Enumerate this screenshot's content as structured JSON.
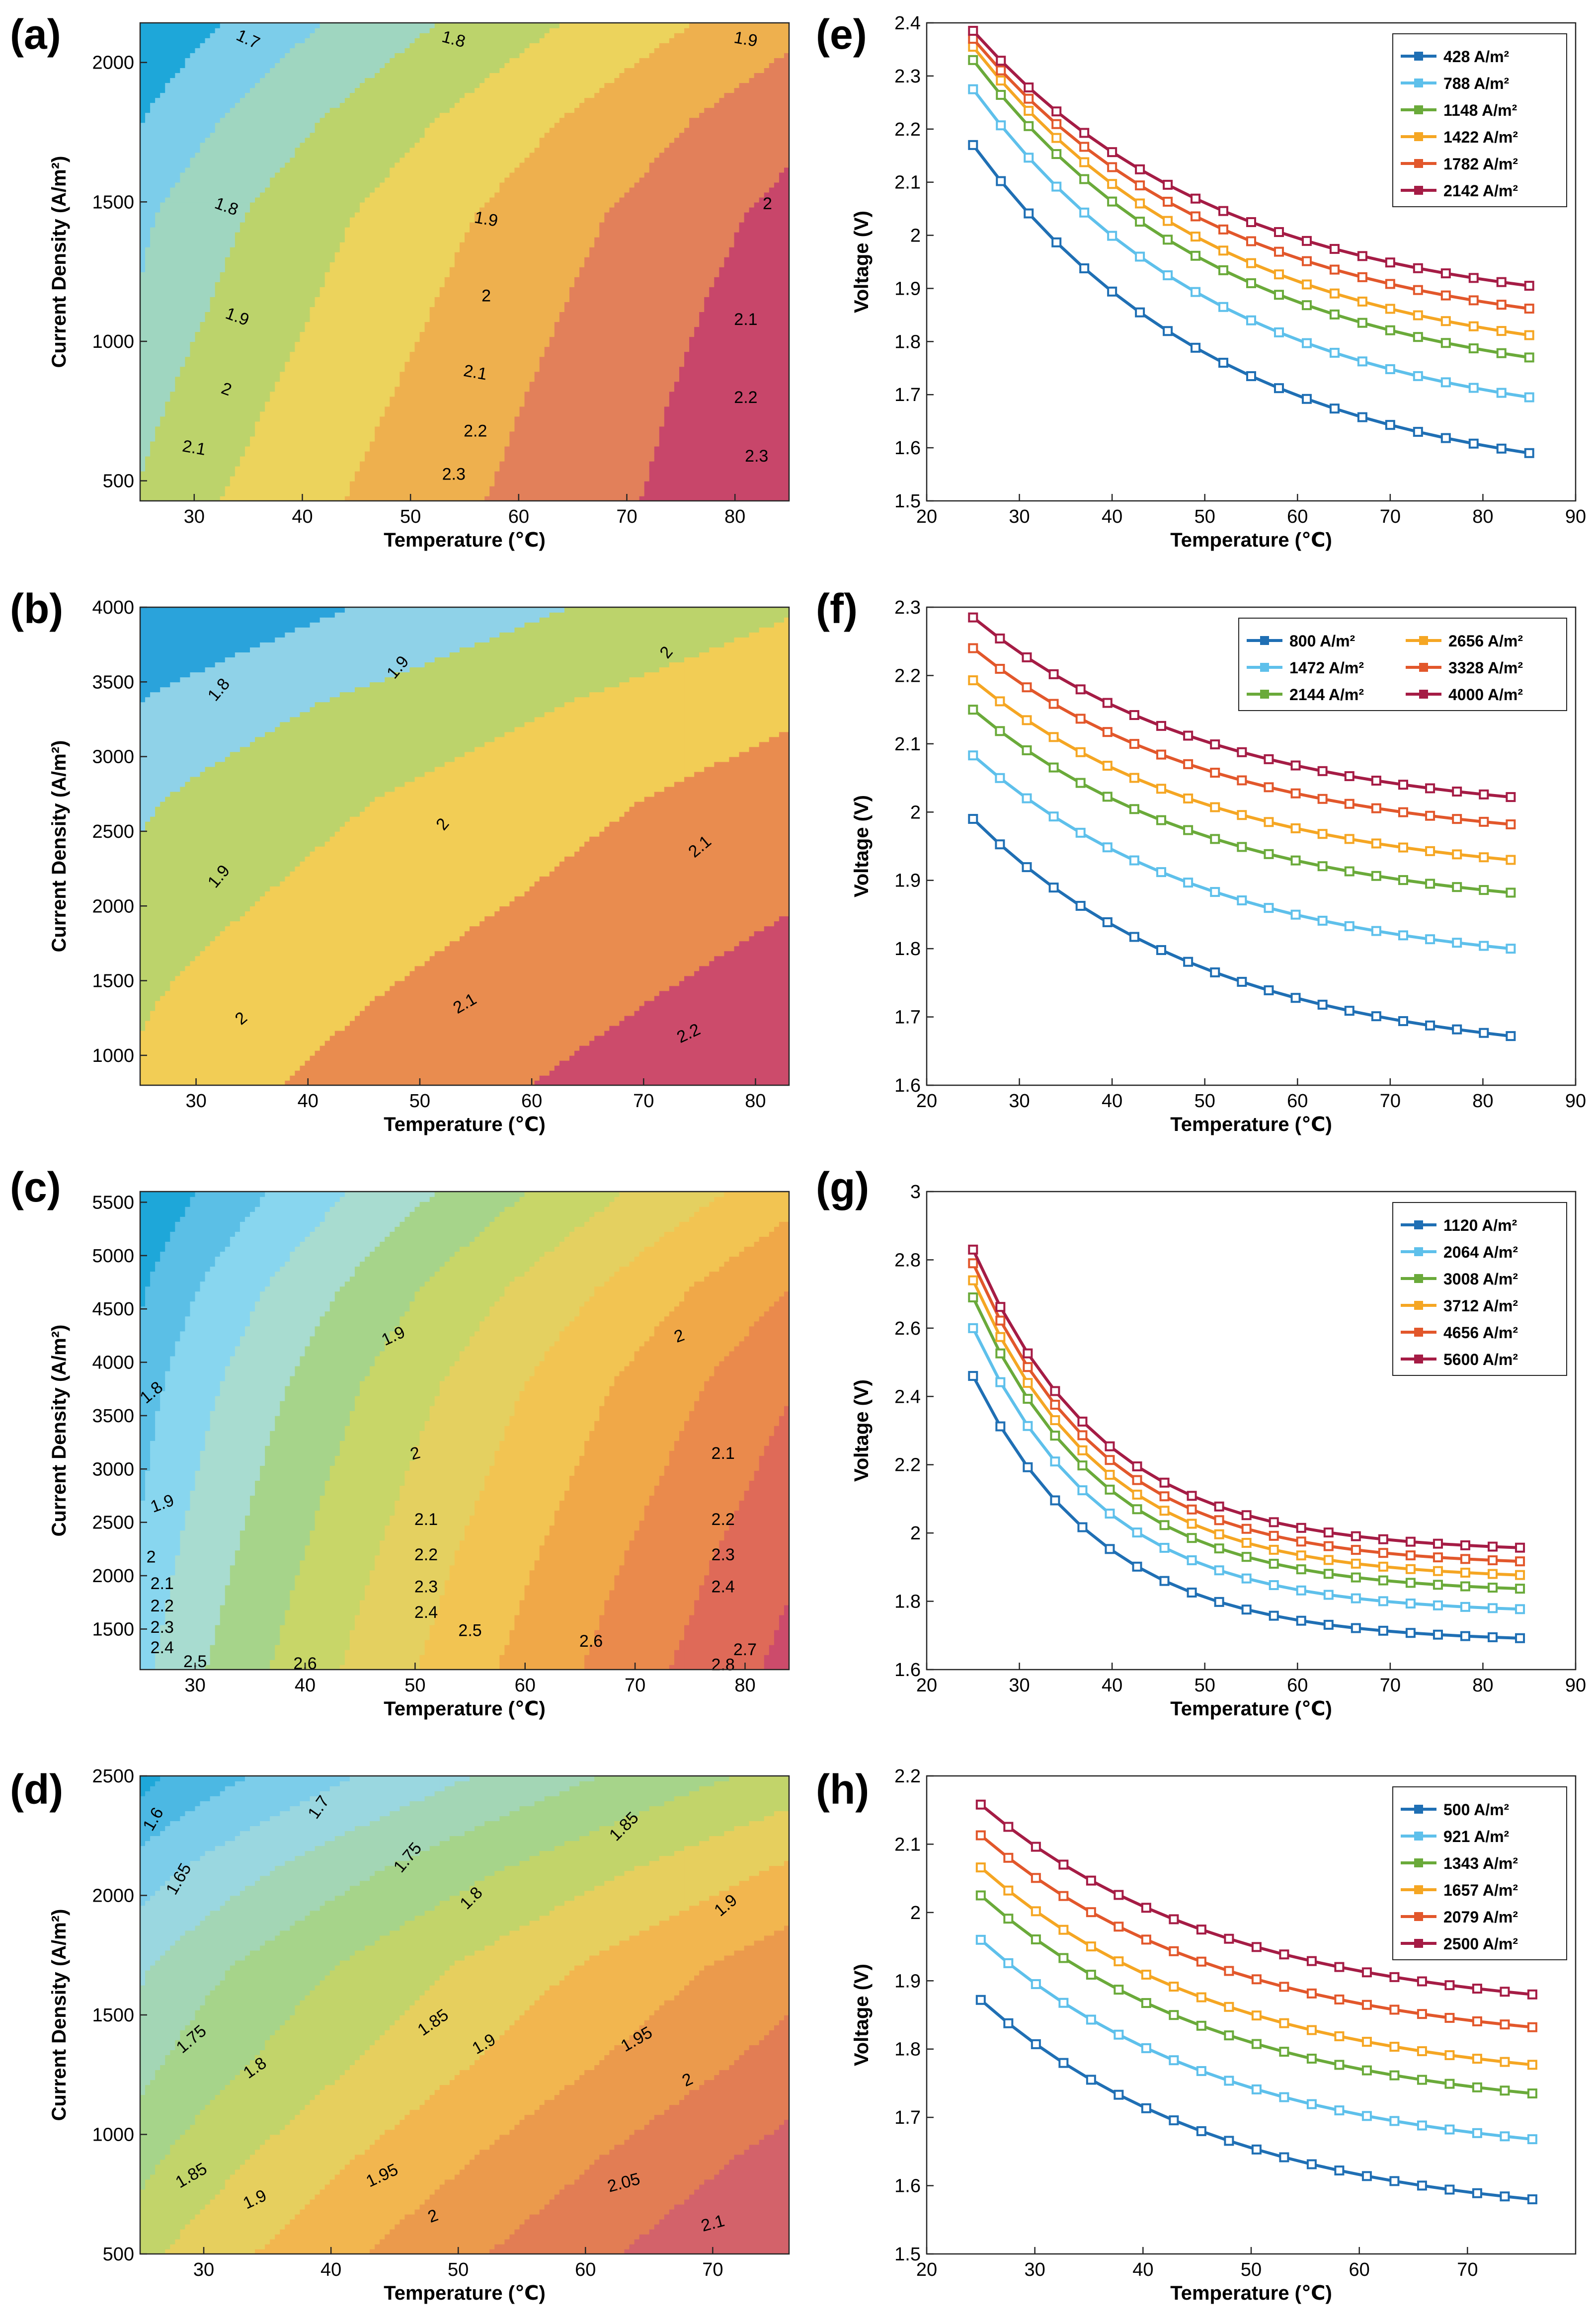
{
  "chart_data": [
    {
      "panel": "(a)",
      "type": "contour",
      "xlabel": "Temperature (℃)",
      "ylabel": "Current Density (A/m²)",
      "xlim": [
        25,
        85
      ],
      "ylim": [
        428,
        2142
      ],
      "xticks": [
        30,
        40,
        50,
        60,
        70,
        80
      ],
      "yticks": [
        500,
        1000,
        1500,
        2000
      ],
      "levels": [
        1.7,
        1.8,
        1.9,
        2.0,
        2.1,
        2.2,
        2.3
      ],
      "level_colors": [
        "#1ea7d9",
        "#7ccdea",
        "#9fd6c0",
        "#bcd36b",
        "#ecd35c",
        "#eeb04e",
        "#e2805a",
        "#c8466a"
      ],
      "field": [
        [
          2.17,
          2.27,
          2.33,
          2.36,
          2.38,
          2.39
        ],
        [
          1.59,
          1.69,
          1.77,
          1.81,
          1.86,
          1.91
        ]
      ],
      "level_labels": [
        {
          "text": "1.7",
          "x": 35,
          "y": 2085,
          "rot": 25
        },
        {
          "text": "1.8",
          "x": 54,
          "y": 2085,
          "rot": 15
        },
        {
          "text": "1.9",
          "x": 81,
          "y": 2085,
          "rot": 10
        },
        {
          "text": "1.8",
          "x": 33,
          "y": 1485,
          "rot": 20
        },
        {
          "text": "1.9",
          "x": 57,
          "y": 1440,
          "rot": 10
        },
        {
          "text": "2",
          "x": 83,
          "y": 1495,
          "rot": 0
        },
        {
          "text": "1.9",
          "x": 34,
          "y": 1090,
          "rot": 20
        },
        {
          "text": "2",
          "x": 57,
          "y": 1165,
          "rot": 0
        },
        {
          "text": "2.1",
          "x": 81,
          "y": 1080,
          "rot": 0
        },
        {
          "text": "2",
          "x": 33,
          "y": 830,
          "rot": 20
        },
        {
          "text": "2.1",
          "x": 56,
          "y": 890,
          "rot": 10
        },
        {
          "text": "2.2",
          "x": 81,
          "y": 800,
          "rot": 0
        },
        {
          "text": "2.1",
          "x": 30,
          "y": 620,
          "rot": 10
        },
        {
          "text": "2.2",
          "x": 56,
          "y": 680,
          "rot": 0
        },
        {
          "text": "2.3",
          "x": 54,
          "y": 525,
          "rot": 0
        },
        {
          "text": "2.3",
          "x": 82,
          "y": 590,
          "rot": 0
        }
      ]
    },
    {
      "panel": "(b)",
      "type": "contour",
      "xlabel": "Temperature (℃)",
      "ylabel": "Current Density (A/m²)",
      "xlim": [
        25,
        83
      ],
      "ylim": [
        800,
        4000
      ],
      "xticks": [
        30,
        40,
        50,
        60,
        70,
        80
      ],
      "yticks": [
        1000,
        1500,
        2000,
        2500,
        3000,
        3500,
        4000
      ],
      "levels": [
        1.8,
        1.9,
        2.0,
        2.1,
        2.2
      ],
      "level_colors": [
        "#2aa3db",
        "#8fd2e8",
        "#bcd36b",
        "#f2cd55",
        "#e98c4f",
        "#cc4b6b"
      ],
      "field": [
        [
          1.99,
          2.08,
          2.15,
          2.19,
          2.24,
          2.29
        ],
        [
          1.67,
          1.8,
          1.88,
          1.93,
          1.98,
          2.02
        ]
      ],
      "level_labels": [
        {
          "text": "1.8",
          "x": 32,
          "y": 3450,
          "rot": -50
        },
        {
          "text": "1.9",
          "x": 48,
          "y": 3600,
          "rot": -50
        },
        {
          "text": "2",
          "x": 72,
          "y": 3700,
          "rot": -50
        },
        {
          "text": "1.9",
          "x": 32,
          "y": 2200,
          "rot": -50
        },
        {
          "text": "2",
          "x": 52,
          "y": 2550,
          "rot": -50
        },
        {
          "text": "2.1",
          "x": 75,
          "y": 2400,
          "rot": -40
        },
        {
          "text": "2",
          "x": 34,
          "y": 1250,
          "rot": -40
        },
        {
          "text": "2.1",
          "x": 54,
          "y": 1350,
          "rot": -30
        },
        {
          "text": "2.2",
          "x": 74,
          "y": 1150,
          "rot": -25
        }
      ]
    },
    {
      "panel": "(c)",
      "type": "contour",
      "xlabel": "Temperature (℃)",
      "ylabel": "Current Density (A/m²)",
      "xlim": [
        25,
        84
      ],
      "ylim": [
        1120,
        5600
      ],
      "xticks": [
        30,
        40,
        50,
        60,
        70,
        80
      ],
      "yticks": [
        1500,
        2000,
        2500,
        3000,
        3500,
        4000,
        4500,
        5000,
        5500
      ],
      "levels": [
        1.8,
        1.9,
        2.0,
        2.1,
        2.2,
        2.3,
        2.4,
        2.5,
        2.6,
        2.7,
        2.8
      ],
      "level_colors": [
        "#1ea7d9",
        "#5bbfe6",
        "#88d6ef",
        "#a8dcd0",
        "#a6d48a",
        "#c8d668",
        "#e4d060",
        "#f2c452",
        "#f0a848",
        "#ea8a4c",
        "#df6a58",
        "#cc4b6b"
      ],
      "field": [
        [
          2.46,
          2.6,
          2.69,
          2.74,
          2.79,
          2.83
        ],
        [
          1.69,
          1.78,
          1.84,
          1.88,
          1.92,
          1.96
        ]
      ],
      "level_labels": [
        {
          "text": "1.9",
          "x": 48,
          "y": 4250,
          "rot": -25
        },
        {
          "text": "2",
          "x": 74,
          "y": 4250,
          "rot": -20
        },
        {
          "text": "1.8",
          "x": 26,
          "y": 3720,
          "rot": -40
        },
        {
          "text": "2",
          "x": 50,
          "y": 3150,
          "rot": -15
        },
        {
          "text": "2.1",
          "x": 78,
          "y": 3150,
          "rot": 0
        },
        {
          "text": "1.9",
          "x": 27,
          "y": 2680,
          "rot": -20
        },
        {
          "text": "2.1",
          "x": 51,
          "y": 2530,
          "rot": 0
        },
        {
          "text": "2.2",
          "x": 78,
          "y": 2530,
          "rot": 0
        },
        {
          "text": "2",
          "x": 26,
          "y": 2180,
          "rot": 0
        },
        {
          "text": "2.2",
          "x": 51,
          "y": 2200,
          "rot": 0
        },
        {
          "text": "2.3",
          "x": 78,
          "y": 2200,
          "rot": 0
        },
        {
          "text": "2.1",
          "x": 27,
          "y": 1930,
          "rot": 0
        },
        {
          "text": "2.3",
          "x": 51,
          "y": 1900,
          "rot": 0
        },
        {
          "text": "2.4",
          "x": 78,
          "y": 1900,
          "rot": 0
        },
        {
          "text": "2.2",
          "x": 27,
          "y": 1720,
          "rot": 0
        },
        {
          "text": "2.4",
          "x": 51,
          "y": 1660,
          "rot": 0
        },
        {
          "text": "2.3",
          "x": 27,
          "y": 1520,
          "rot": 0
        },
        {
          "text": "2.5",
          "x": 55,
          "y": 1490,
          "rot": 0
        },
        {
          "text": "2.4",
          "x": 27,
          "y": 1330,
          "rot": 0
        },
        {
          "text": "2.6",
          "x": 66,
          "y": 1390,
          "rot": 0
        },
        {
          "text": "2.7",
          "x": 80,
          "y": 1310,
          "rot": 0
        },
        {
          "text": "2.5",
          "x": 30,
          "y": 1200,
          "rot": 0
        },
        {
          "text": "2.6",
          "x": 40,
          "y": 1180,
          "rot": 0
        },
        {
          "text": "2.8",
          "x": 78,
          "y": 1170,
          "rot": 0
        }
      ]
    },
    {
      "panel": "(d)",
      "type": "contour",
      "xlabel": "Temperature (℃)",
      "ylabel": "Current Density (A/m²)",
      "xlim": [
        25,
        76
      ],
      "ylim": [
        500,
        2500
      ],
      "xticks": [
        30,
        40,
        50,
        60,
        70
      ],
      "yticks": [
        500,
        1000,
        1500,
        2000,
        2500
      ],
      "levels": [
        1.6,
        1.65,
        1.7,
        1.75,
        1.8,
        1.85,
        1.9,
        1.95,
        2.0,
        2.05,
        2.1
      ],
      "level_colors": [
        "#1ea7d9",
        "#4cb8e3",
        "#7ccdea",
        "#9ad7e0",
        "#a3d6b5",
        "#a6d48a",
        "#c2d46a",
        "#e6cf5e",
        "#f2b64f",
        "#eb9a4c",
        "#e27d54",
        "#d3626a"
      ],
      "field": [
        [
          1.87,
          1.96,
          2.03,
          2.07,
          2.12,
          2.16
        ],
        [
          1.58,
          1.67,
          1.74,
          1.78,
          1.83,
          1.88
        ]
      ],
      "level_labels": [
        {
          "text": "1.6",
          "x": 26,
          "y": 2320,
          "rot": -60
        },
        {
          "text": "1.7",
          "x": 39,
          "y": 2370,
          "rot": -55
        },
        {
          "text": "1.65",
          "x": 28,
          "y": 2070,
          "rot": -60
        },
        {
          "text": "1.75",
          "x": 46,
          "y": 2160,
          "rot": -50
        },
        {
          "text": "1.85",
          "x": 63,
          "y": 2290,
          "rot": -45
        },
        {
          "text": "1.8",
          "x": 51,
          "y": 1990,
          "rot": -45
        },
        {
          "text": "1.9",
          "x": 71,
          "y": 1960,
          "rot": -40
        },
        {
          "text": "1.75",
          "x": 29,
          "y": 1400,
          "rot": -40
        },
        {
          "text": "1.85",
          "x": 48,
          "y": 1470,
          "rot": -35
        },
        {
          "text": "1.8",
          "x": 34,
          "y": 1280,
          "rot": -35
        },
        {
          "text": "1.9",
          "x": 52,
          "y": 1380,
          "rot": -30
        },
        {
          "text": "1.95",
          "x": 64,
          "y": 1400,
          "rot": -30
        },
        {
          "text": "2",
          "x": 68,
          "y": 1230,
          "rot": -25
        },
        {
          "text": "1.85",
          "x": 29,
          "y": 830,
          "rot": -30
        },
        {
          "text": "1.9",
          "x": 34,
          "y": 730,
          "rot": -25
        },
        {
          "text": "1.95",
          "x": 44,
          "y": 830,
          "rot": -25
        },
        {
          "text": "2",
          "x": 48,
          "y": 660,
          "rot": -20
        },
        {
          "text": "2.05",
          "x": 63,
          "y": 800,
          "rot": -15
        },
        {
          "text": "2.1",
          "x": 70,
          "y": 630,
          "rot": -15
        }
      ]
    },
    {
      "panel": "(e)",
      "type": "line",
      "xlabel": "Temperature (℃)",
      "ylabel": "Voltage (V)",
      "xlim": [
        20,
        90
      ],
      "ylim": [
        1.5,
        2.4
      ],
      "xticks": [
        20,
        30,
        40,
        50,
        60,
        70,
        80,
        90
      ],
      "yticks": [
        1.5,
        1.6,
        1.7,
        1.8,
        1.9,
        2.0,
        2.1,
        2.2,
        2.3,
        2.4
      ],
      "ytick_labels": [
        "1.5",
        "1.6",
        "1.7",
        "1.8",
        "1.9",
        "2",
        "2.1",
        "2.2",
        "2.3",
        "2.4"
      ],
      "x_start": 25,
      "x_end": 85,
      "series": [
        {
          "name": "428 A/m²",
          "color": "#1f6fb4",
          "v0": 2.17,
          "v1": 1.59
        },
        {
          "name": "788 A/m²",
          "color": "#5ec0eb",
          "v0": 2.275,
          "v1": 1.695
        },
        {
          "name": "1148 A/m²",
          "color": "#6aaa3a",
          "v0": 2.33,
          "v1": 1.77
        },
        {
          "name": "1422 A/m²",
          "color": "#f5a623",
          "v0": 2.355,
          "v1": 1.812
        },
        {
          "name": "1782 A/m²",
          "color": "#e2572b",
          "v0": 2.37,
          "v1": 1.862
        },
        {
          "name": "2142 A/m²",
          "color": "#a51c45",
          "v0": 2.385,
          "v1": 1.905
        }
      ],
      "legend_cols": 1
    },
    {
      "panel": "(f)",
      "type": "line",
      "xlabel": "Temperature (℃)",
      "ylabel": "Voltage (V)",
      "xlim": [
        20,
        90
      ],
      "ylim": [
        1.6,
        2.3
      ],
      "xticks": [
        20,
        30,
        40,
        50,
        60,
        70,
        80,
        90
      ],
      "yticks": [
        1.6,
        1.7,
        1.8,
        1.9,
        2.0,
        2.1,
        2.2,
        2.3
      ],
      "ytick_labels": [
        "1.6",
        "1.7",
        "1.8",
        "1.9",
        "2",
        "2.1",
        "2.2",
        "2.3"
      ],
      "x_start": 25,
      "x_end": 83,
      "series": [
        {
          "name": "800 A/m²",
          "color": "#1f6fb4",
          "v0": 1.99,
          "v1": 1.672
        },
        {
          "name": "1472 A/m²",
          "color": "#5ec0eb",
          "v0": 2.083,
          "v1": 1.8
        },
        {
          "name": "2144 A/m²",
          "color": "#6aaa3a",
          "v0": 2.15,
          "v1": 1.882
        },
        {
          "name": "2656 A/m²",
          "color": "#f5a623",
          "v0": 2.193,
          "v1": 1.93
        },
        {
          "name": "3328 A/m²",
          "color": "#e2572b",
          "v0": 2.24,
          "v1": 1.982
        },
        {
          "name": "4000 A/m²",
          "color": "#a51c45",
          "v0": 2.285,
          "v1": 2.022
        }
      ],
      "legend_cols": 2
    },
    {
      "panel": "(g)",
      "type": "line",
      "xlabel": "Temperature (℃)",
      "ylabel": "Voltage (V)",
      "xlim": [
        20,
        90
      ],
      "ylim": [
        1.6,
        3.0
      ],
      "xticks": [
        20,
        30,
        40,
        50,
        60,
        70,
        80,
        90
      ],
      "yticks": [
        1.6,
        1.8,
        2.0,
        2.2,
        2.4,
        2.6,
        2.8,
        3.0
      ],
      "ytick_labels": [
        "1.6",
        "1.8",
        "2",
        "2.2",
        "2.4",
        "2.6",
        "2.8",
        "3"
      ],
      "x_start": 25,
      "x_end": 84,
      "series": [
        {
          "name": "1120 A/m²",
          "color": "#1f6fb4",
          "v0": 2.46,
          "v1": 1.692
        },
        {
          "name": "2064 A/m²",
          "color": "#5ec0eb",
          "v0": 2.6,
          "v1": 1.777
        },
        {
          "name": "3008 A/m²",
          "color": "#6aaa3a",
          "v0": 2.69,
          "v1": 1.837
        },
        {
          "name": "3712 A/m²",
          "color": "#f5a623",
          "v0": 2.74,
          "v1": 1.877
        },
        {
          "name": "4656 A/m²",
          "color": "#e2572b",
          "v0": 2.79,
          "v1": 1.917
        },
        {
          "name": "5600 A/m²",
          "color": "#a51c45",
          "v0": 2.83,
          "v1": 1.957
        }
      ],
      "legend_cols": 1
    },
    {
      "panel": "(h)",
      "type": "line",
      "xlabel": "Temperature (℃)",
      "ylabel": "Voltage (V)",
      "xlim": [
        20,
        80
      ],
      "ylim": [
        1.5,
        2.2
      ],
      "xticks": [
        20,
        30,
        40,
        50,
        60,
        70
      ],
      "yticks": [
        1.5,
        1.6,
        1.7,
        1.8,
        1.9,
        2.0,
        2.1,
        2.2
      ],
      "ytick_labels": [
        "1.5",
        "1.6",
        "1.7",
        "1.8",
        "1.9",
        "2",
        "2.1",
        "2.2"
      ],
      "x_start": 25,
      "x_end": 76,
      "series": [
        {
          "name": "500 A/m²",
          "color": "#1f6fb4",
          "v0": 1.872,
          "v1": 1.58
        },
        {
          "name": "921 A/m²",
          "color": "#5ec0eb",
          "v0": 1.96,
          "v1": 1.668
        },
        {
          "name": "1343 A/m²",
          "color": "#6aaa3a",
          "v0": 2.025,
          "v1": 1.735
        },
        {
          "name": "1657 A/m²",
          "color": "#f5a623",
          "v0": 2.066,
          "v1": 1.777
        },
        {
          "name": "2079 A/m²",
          "color": "#e2572b",
          "v0": 2.113,
          "v1": 1.832
        },
        {
          "name": "2500 A/m²",
          "color": "#a51c45",
          "v0": 2.158,
          "v1": 1.88
        }
      ],
      "legend_cols": 1
    }
  ]
}
